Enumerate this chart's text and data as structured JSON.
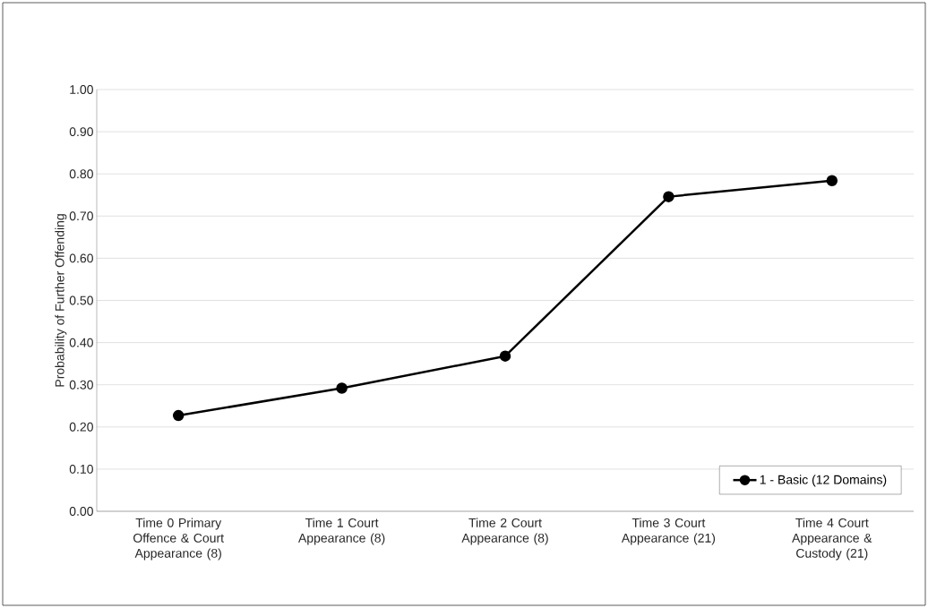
{
  "chart_data": {
    "type": "line",
    "ylabel": "Probability of Further Offending",
    "categories": [
      "Time 0 Primary Offence & Court Appearance (8)",
      "Time 1 Court Appearance (8)",
      "Time 2 Court Appearance (8)",
      "Time 3 Court Appearance (21)",
      "Time 4 Court Appearance & Custody (21)"
    ],
    "series": [
      {
        "name": "1 - Basic (12 Domains)",
        "color": "#000000",
        "values": [
          0.227,
          0.292,
          0.368,
          0.746,
          0.784
        ]
      }
    ],
    "ylim": [
      0,
      1
    ],
    "yticks": [
      {
        "value": 0,
        "label": "0.00"
      },
      {
        "value": 0.1,
        "label": "0.10"
      },
      {
        "value": 0.2,
        "label": "0.20"
      },
      {
        "value": 0.3,
        "label": "0.30"
      },
      {
        "value": 0.4,
        "label": "0.40"
      },
      {
        "value": 0.5,
        "label": "0.50"
      },
      {
        "value": 0.6,
        "label": "0.60"
      },
      {
        "value": 0.7,
        "label": "0.70"
      },
      {
        "value": 0.8,
        "label": "0.80"
      },
      {
        "value": 0.9,
        "label": "0.90"
      },
      {
        "value": 1,
        "label": "1.00"
      }
    ],
    "grid": "y",
    "legend": "bottom right",
    "marker": "circle",
    "line_style": "solid"
  }
}
